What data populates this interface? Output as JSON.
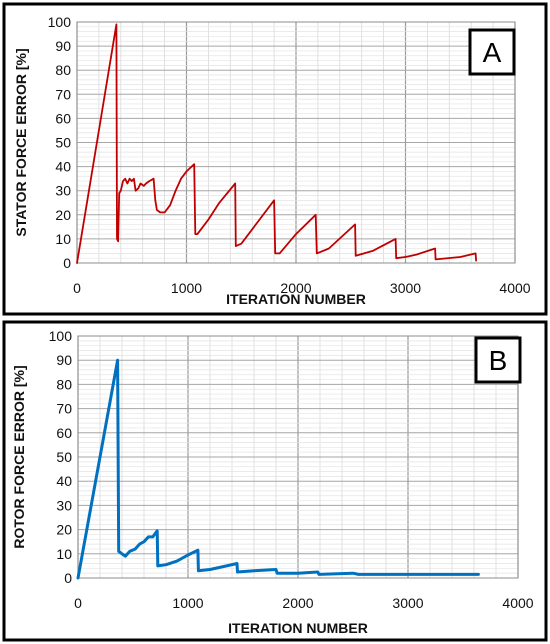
{
  "chart_data": [
    {
      "type": "line",
      "panel_label": "A",
      "xlabel": "ITERATION NUMBER",
      "ylabel": "STATOR FORCE ERROR [%]",
      "xlim": [
        0,
        4000
      ],
      "ylim": [
        0,
        100
      ],
      "xticks": [
        0,
        1000,
        2000,
        3000,
        4000
      ],
      "yticks": [
        0,
        10,
        20,
        30,
        40,
        50,
        60,
        70,
        80,
        90,
        100
      ],
      "grid": true,
      "series": [
        {
          "color": "#c00000",
          "points": [
            [
              0,
              0
            ],
            [
              360,
              99
            ],
            [
              365,
              10
            ],
            [
              375,
              9
            ],
            [
              385,
              29
            ],
            [
              400,
              30
            ],
            [
              420,
              34
            ],
            [
              440,
              35
            ],
            [
              460,
              33
            ],
            [
              480,
              35
            ],
            [
              500,
              34
            ],
            [
              520,
              35
            ],
            [
              535,
              30
            ],
            [
              560,
              31
            ],
            [
              580,
              33
            ],
            [
              610,
              32
            ],
            [
              630,
              33
            ],
            [
              660,
              34
            ],
            [
              700,
              35
            ],
            [
              715,
              26
            ],
            [
              730,
              22
            ],
            [
              760,
              21
            ],
            [
              800,
              21
            ],
            [
              850,
              24
            ],
            [
              900,
              30
            ],
            [
              950,
              35
            ],
            [
              1000,
              38
            ],
            [
              1070,
              41
            ],
            [
              1080,
              12
            ],
            [
              1100,
              12
            ],
            [
              1200,
              18
            ],
            [
              1300,
              25
            ],
            [
              1445,
              33
            ],
            [
              1450,
              7
            ],
            [
              1500,
              8
            ],
            [
              1650,
              17
            ],
            [
              1800,
              26
            ],
            [
              1810,
              4
            ],
            [
              1850,
              4
            ],
            [
              2000,
              12
            ],
            [
              2180,
              20
            ],
            [
              2190,
              4
            ],
            [
              2300,
              6
            ],
            [
              2540,
              16
            ],
            [
              2545,
              3
            ],
            [
              2700,
              5
            ],
            [
              2910,
              10
            ],
            [
              2915,
              2
            ],
            [
              3000,
              2.5
            ],
            [
              3100,
              3.5
            ],
            [
              3270,
              6
            ],
            [
              3275,
              1.5
            ],
            [
              3500,
              2.5
            ],
            [
              3640,
              4
            ],
            [
              3645,
              1
            ]
          ]
        }
      ]
    },
    {
      "type": "line",
      "panel_label": "B",
      "xlabel": "ITERATION NUMBER",
      "ylabel": "ROTOR FORCE ERROR [%]",
      "xlim": [
        0,
        4000
      ],
      "ylim": [
        0,
        100
      ],
      "xticks": [
        0,
        1000,
        2000,
        3000,
        4000
      ],
      "yticks": [
        0,
        10,
        20,
        30,
        40,
        50,
        60,
        70,
        80,
        90,
        100
      ],
      "grid": true,
      "series": [
        {
          "color": "#0070c0",
          "points": [
            [
              0,
              0
            ],
            [
              360,
              90
            ],
            [
              370,
              11
            ],
            [
              400,
              10
            ],
            [
              430,
              9
            ],
            [
              470,
              11
            ],
            [
              520,
              12
            ],
            [
              560,
              14
            ],
            [
              600,
              15
            ],
            [
              640,
              17
            ],
            [
              680,
              17
            ],
            [
              720,
              19.5
            ],
            [
              725,
              5
            ],
            [
              800,
              5.5
            ],
            [
              900,
              7
            ],
            [
              1000,
              9.5
            ],
            [
              1090,
              11.5
            ],
            [
              1095,
              3
            ],
            [
              1200,
              3.5
            ],
            [
              1300,
              4.5
            ],
            [
              1445,
              6
            ],
            [
              1450,
              2.5
            ],
            [
              1600,
              3
            ],
            [
              1800,
              3.5
            ],
            [
              1810,
              2
            ],
            [
              2000,
              2
            ],
            [
              2180,
              2.5
            ],
            [
              2190,
              1.5
            ],
            [
              2500,
              2
            ],
            [
              2550,
              1.5
            ],
            [
              3000,
              1.5
            ],
            [
              3640,
              1.5
            ]
          ]
        }
      ]
    }
  ]
}
